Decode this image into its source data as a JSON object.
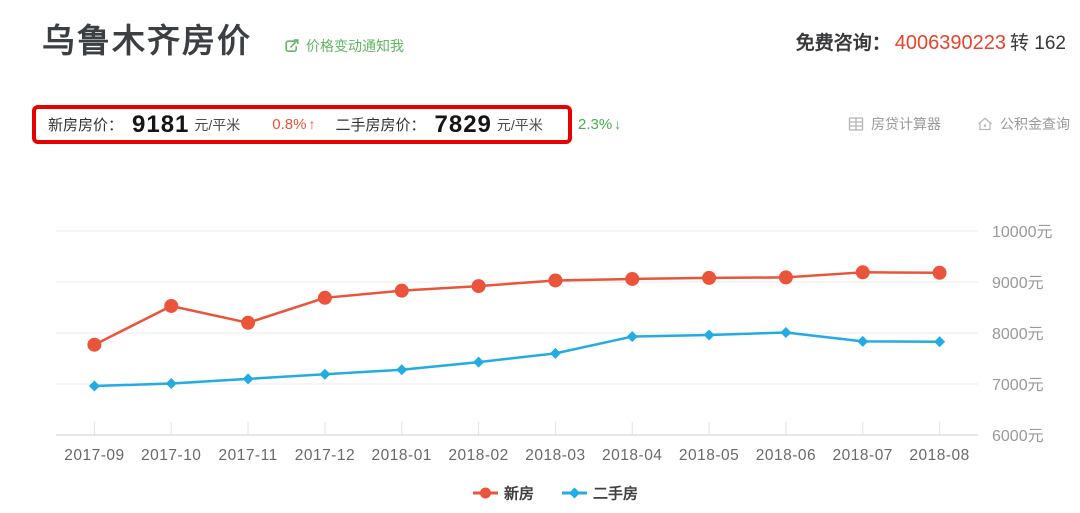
{
  "header": {
    "title": "乌鲁木齐房价",
    "notify_link": "价格变动通知我",
    "consult_label": "免费咨询：",
    "consult_phone": "4006390223",
    "consult_ext": "转 162"
  },
  "summary": {
    "new_label": "新房房价：",
    "new_price": "9181",
    "new_unit": "元/平米",
    "new_change": "0.8%",
    "new_change_arrow": "↑",
    "used_label": "二手房房价：",
    "used_price": "7829",
    "used_unit": "元/平米",
    "used_change": "2.3%",
    "used_change_arrow": "↓",
    "tools": {
      "mortgage_calculator": "房贷计算器",
      "provident_fund": "公积金查询"
    }
  },
  "colors": {
    "annotation_red": "#e60000",
    "phone_red": "#e8432e",
    "change_up_red": "#e8533a",
    "change_down_green": "#43b04a",
    "link_green": "#62b562",
    "new_home_line": "#e9543b",
    "used_home_line": "#23abe3"
  },
  "chart_data": {
    "type": "line",
    "title": "",
    "categories": [
      "2017-09",
      "2017-10",
      "2017-11",
      "2017-12",
      "2018-01",
      "2018-02",
      "2018-03",
      "2018-04",
      "2018-05",
      "2018-06",
      "2018-07",
      "2018-08"
    ],
    "series": [
      {
        "name": "新房",
        "color": "#e9543b",
        "marker": "circle",
        "values": [
          7770,
          8530,
          8200,
          8690,
          8830,
          8920,
          9030,
          9060,
          9080,
          9090,
          9190,
          9181
        ]
      },
      {
        "name": "二手房",
        "color": "#23abe3",
        "marker": "diamond",
        "values": [
          6960,
          7010,
          7100,
          7190,
          7280,
          7430,
          7600,
          7930,
          7960,
          8010,
          7836,
          7829
        ]
      }
    ],
    "xlabel": "",
    "ylabel": "",
    "ylim": [
      6000,
      10000
    ],
    "yticks": [
      10000,
      9000,
      8000,
      7000,
      6000
    ],
    "ytick_suffix": "元",
    "grid": true,
    "legend_position": "bottom"
  }
}
